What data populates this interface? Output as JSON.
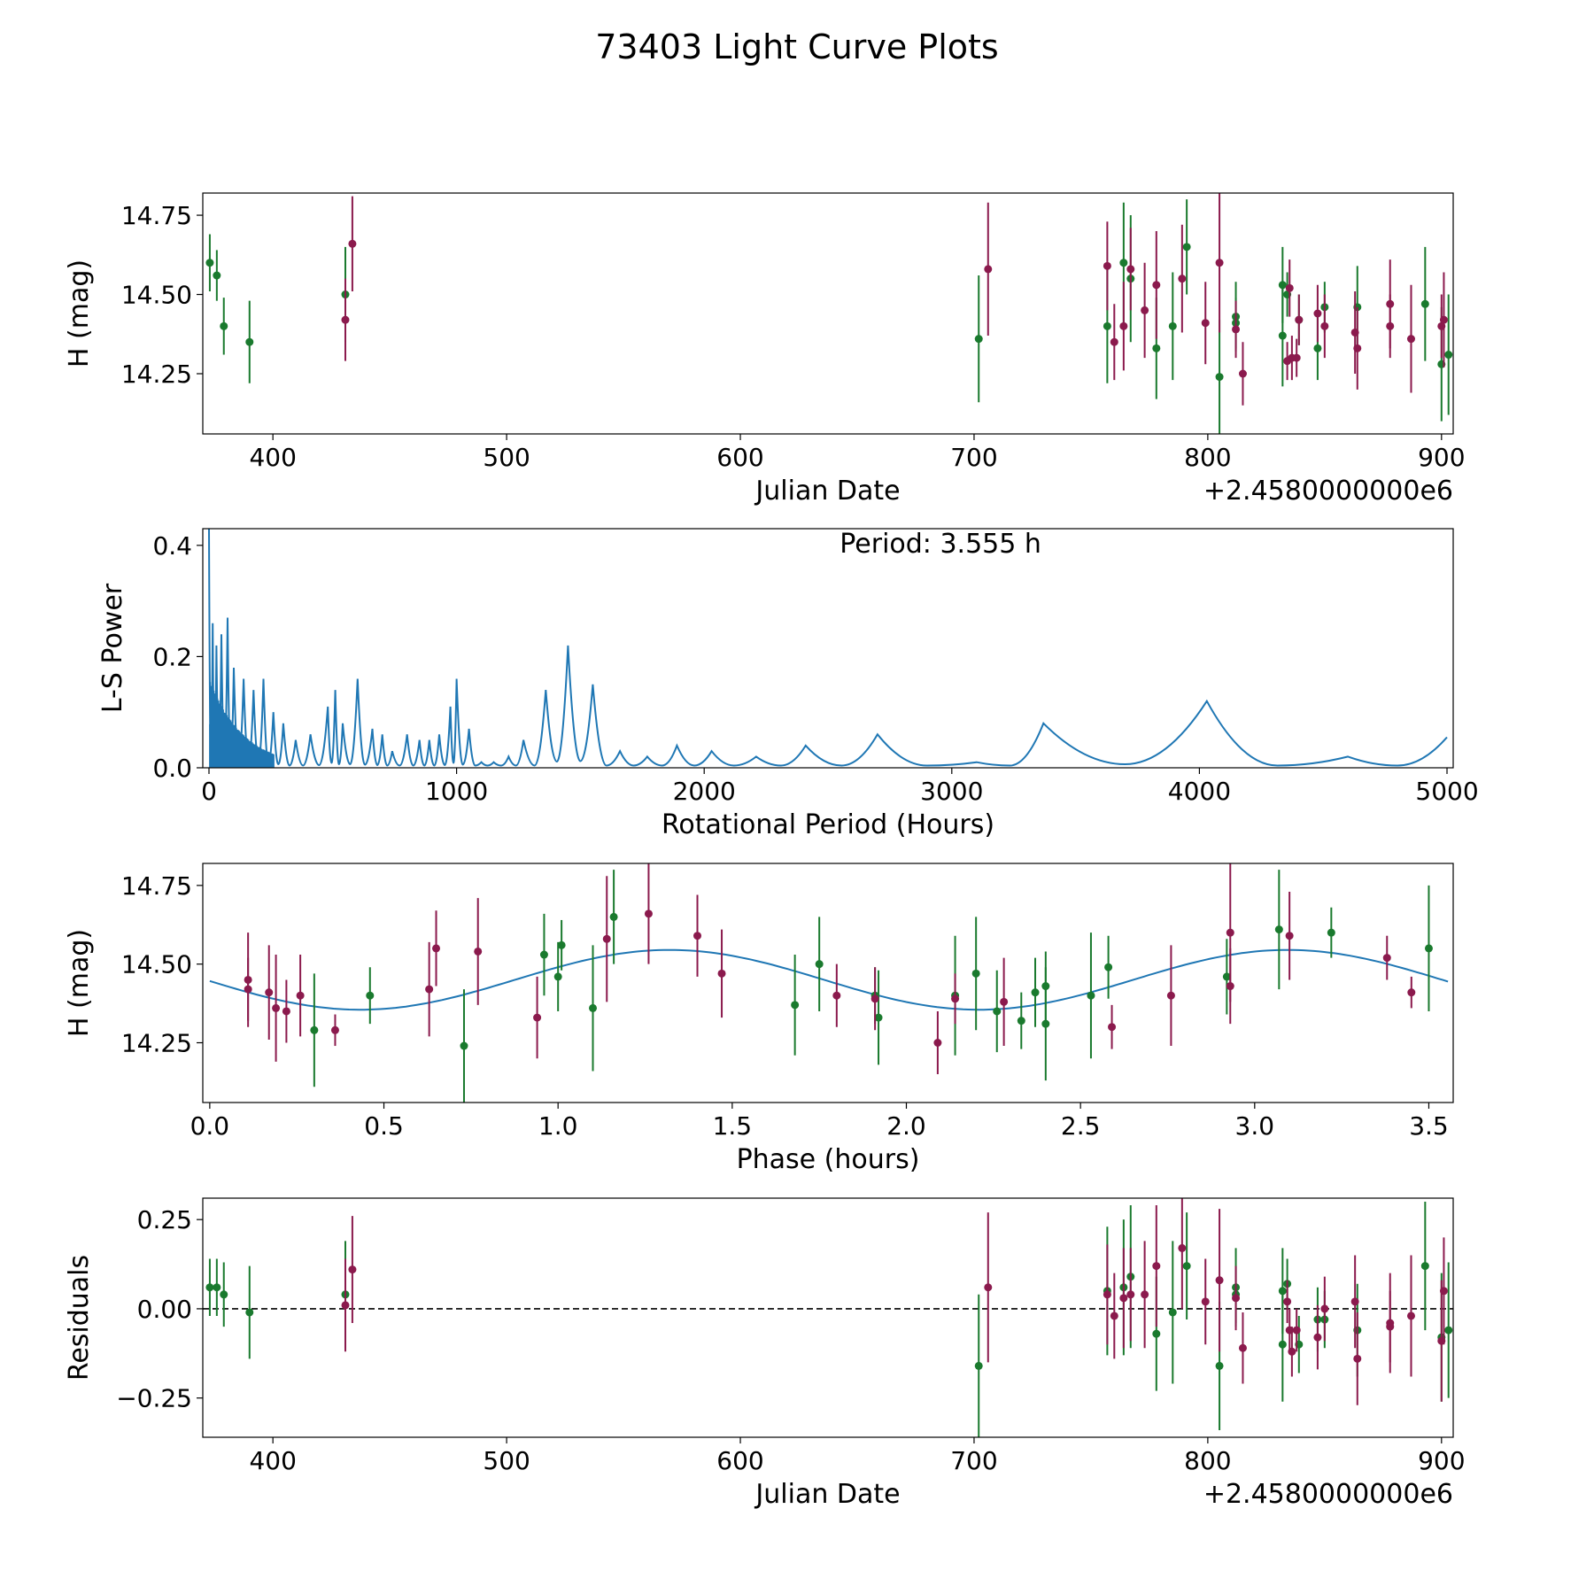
{
  "figure_title": "73403 Light Curve Plots",
  "colors": {
    "green": "#1a7a2e",
    "magenta": "#8b1a4d",
    "curve": "#1f77b4",
    "axis": "#000000"
  },
  "chart_data": [
    {
      "id": "lightcurve",
      "type": "scatter",
      "xlabel": "Julian Date",
      "ylabel": "H (mag)",
      "offset_text": "+2.4580000000e6",
      "xlim": [
        370,
        905
      ],
      "ylim": [
        14.06,
        14.82
      ],
      "xticks": [
        400,
        500,
        600,
        700,
        800,
        900
      ],
      "yticks": [
        14.25,
        14.5,
        14.75
      ],
      "ytick_labels": [
        "14.25",
        "14.50",
        "14.75"
      ],
      "series": [
        {
          "name": "green",
          "color": "#1a7a2e",
          "points": [
            [
              373,
              14.6,
              0.09
            ],
            [
              376,
              14.56,
              0.08
            ],
            [
              379,
              14.4,
              0.09
            ],
            [
              390,
              14.35,
              0.13
            ],
            [
              431,
              14.5,
              0.15
            ],
            [
              702,
              14.36,
              0.2
            ],
            [
              757,
              14.4,
              0.18
            ],
            [
              764,
              14.6,
              0.19
            ],
            [
              767,
              14.55,
              0.2
            ],
            [
              778,
              14.33,
              0.16
            ],
            [
              785,
              14.4,
              0.17
            ],
            [
              791,
              14.65,
              0.15
            ],
            [
              805,
              14.24,
              0.18
            ],
            [
              812,
              14.43,
              0.11
            ],
            [
              812,
              14.41,
              0.08
            ],
            [
              832,
              14.53,
              0.12
            ],
            [
              832,
              14.37,
              0.16
            ],
            [
              834,
              14.5,
              0.07
            ],
            [
              839,
              14.42,
              0.08
            ],
            [
              847,
              14.33,
              0.1
            ],
            [
              850,
              14.46,
              0.08
            ],
            [
              864,
              14.46,
              0.13
            ],
            [
              893,
              14.47,
              0.18
            ],
            [
              900,
              14.28,
              0.18
            ],
            [
              903,
              14.31,
              0.19
            ]
          ]
        },
        {
          "name": "magenta",
          "color": "#8b1a4d",
          "points": [
            [
              431,
              14.42,
              0.13
            ],
            [
              434,
              14.66,
              0.15
            ],
            [
              706,
              14.58,
              0.21
            ],
            [
              757,
              14.59,
              0.14
            ],
            [
              760,
              14.35,
              0.12
            ],
            [
              764,
              14.4,
              0.14
            ],
            [
              767,
              14.58,
              0.13
            ],
            [
              773,
              14.45,
              0.15
            ],
            [
              778,
              14.53,
              0.17
            ],
            [
              789,
              14.55,
              0.17
            ],
            [
              799,
              14.41,
              0.13
            ],
            [
              805,
              14.6,
              0.22
            ],
            [
              812,
              14.39,
              0.09
            ],
            [
              815,
              14.25,
              0.1
            ],
            [
              834,
              14.29,
              0.06
            ],
            [
              835,
              14.52,
              0.09
            ],
            [
              836,
              14.3,
              0.07
            ],
            [
              838,
              14.3,
              0.06
            ],
            [
              839,
              14.42,
              0.08
            ],
            [
              847,
              14.44,
              0.09
            ],
            [
              850,
              14.4,
              0.1
            ],
            [
              863,
              14.38,
              0.13
            ],
            [
              864,
              14.33,
              0.13
            ],
            [
              878,
              14.47,
              0.14
            ],
            [
              878,
              14.4,
              0.1
            ],
            [
              887,
              14.36,
              0.17
            ],
            [
              900,
              14.4,
              0.1
            ],
            [
              901,
              14.42,
              0.15
            ]
          ]
        }
      ]
    },
    {
      "id": "periodogram",
      "type": "line",
      "xlabel": "Rotational Period (Hours)",
      "ylabel": "L-S Power",
      "annotation": "Period: 3.555 h",
      "xlim": [
        -25,
        5025
      ],
      "ylim": [
        0,
        0.43
      ],
      "xticks": [
        0,
        1000,
        2000,
        3000,
        4000,
        5000
      ],
      "yticks": [
        0.0,
        0.2,
        0.4
      ],
      "ytick_labels": [
        "0.0",
        "0.2",
        "0.4"
      ],
      "peaks": [
        [
          0,
          0.43
        ],
        [
          15,
          0.26
        ],
        [
          30,
          0.22
        ],
        [
          50,
          0.24
        ],
        [
          75,
          0.27
        ],
        [
          100,
          0.18
        ],
        [
          140,
          0.16
        ],
        [
          180,
          0.14
        ],
        [
          220,
          0.16
        ],
        [
          260,
          0.1
        ],
        [
          300,
          0.08
        ],
        [
          350,
          0.05
        ],
        [
          410,
          0.06
        ],
        [
          480,
          0.11
        ],
        [
          510,
          0.14
        ],
        [
          540,
          0.08
        ],
        [
          600,
          0.16
        ],
        [
          660,
          0.07
        ],
        [
          700,
          0.06
        ],
        [
          740,
          0.03
        ],
        [
          800,
          0.06
        ],
        [
          850,
          0.05
        ],
        [
          890,
          0.05
        ],
        [
          930,
          0.06
        ],
        [
          975,
          0.11
        ],
        [
          1000,
          0.16
        ],
        [
          1050,
          0.07
        ],
        [
          1100,
          0.01
        ],
        [
          1150,
          0.01
        ],
        [
          1210,
          0.02
        ],
        [
          1270,
          0.05
        ],
        [
          1360,
          0.14
        ],
        [
          1450,
          0.22
        ],
        [
          1550,
          0.15
        ],
        [
          1660,
          0.03
        ],
        [
          1770,
          0.02
        ],
        [
          1890,
          0.04
        ],
        [
          2030,
          0.03
        ],
        [
          2210,
          0.02
        ],
        [
          2410,
          0.04
        ],
        [
          2700,
          0.06
        ],
        [
          3100,
          0.01
        ],
        [
          3370,
          0.08
        ],
        [
          4030,
          0.12
        ],
        [
          4600,
          0.02
        ],
        [
          5000,
          0.055
        ]
      ]
    },
    {
      "id": "phased",
      "type": "scatter",
      "xlabel": "Phase (hours)",
      "ylabel": "H (mag)",
      "xlim": [
        -0.02,
        3.57
      ],
      "ylim": [
        14.06,
        14.82
      ],
      "xticks": [
        0.0,
        0.5,
        1.0,
        1.5,
        2.0,
        2.5,
        3.0,
        3.5
      ],
      "xtick_labels": [
        "0.0",
        "0.5",
        "1.0",
        "1.5",
        "2.0",
        "2.5",
        "3.0",
        "3.5"
      ],
      "yticks": [
        14.25,
        14.5,
        14.75
      ],
      "ytick_labels": [
        "14.25",
        "14.50",
        "14.75"
      ],
      "fit": {
        "mean": 14.45,
        "amplitude": 0.095,
        "period": 1.775,
        "peak_phase": 1.32
      },
      "series": [
        {
          "name": "green",
          "color": "#1a7a2e",
          "points": [
            [
              0.3,
              14.29,
              0.18
            ],
            [
              0.46,
              14.4,
              0.09
            ],
            [
              0.73,
              14.24,
              0.18
            ],
            [
              0.96,
              14.53,
              0.13
            ],
            [
              1.0,
              14.46,
              0.11
            ],
            [
              1.01,
              14.56,
              0.08
            ],
            [
              1.1,
              14.36,
              0.2
            ],
            [
              1.16,
              14.65,
              0.15
            ],
            [
              1.68,
              14.37,
              0.16
            ],
            [
              1.75,
              14.5,
              0.15
            ],
            [
              1.91,
              14.4,
              0.09
            ],
            [
              1.92,
              14.33,
              0.15
            ],
            [
              2.14,
              14.4,
              0.19
            ],
            [
              2.2,
              14.47,
              0.18
            ],
            [
              2.26,
              14.35,
              0.13
            ],
            [
              2.33,
              14.32,
              0.09
            ],
            [
              2.37,
              14.41,
              0.11
            ],
            [
              2.4,
              14.43,
              0.11
            ],
            [
              2.4,
              14.31,
              0.18
            ],
            [
              2.53,
              14.4,
              0.2
            ],
            [
              2.58,
              14.49,
              0.1
            ],
            [
              2.92,
              14.46,
              0.12
            ],
            [
              3.07,
              14.61,
              0.19
            ],
            [
              3.22,
              14.6,
              0.08
            ],
            [
              3.5,
              14.55,
              0.2
            ]
          ]
        },
        {
          "name": "magenta",
          "color": "#8b1a4d",
          "points": [
            [
              0.11,
              14.45,
              0.15
            ],
            [
              0.11,
              14.42,
              0.1
            ],
            [
              0.17,
              14.41,
              0.15
            ],
            [
              0.19,
              14.36,
              0.17
            ],
            [
              0.22,
              14.35,
              0.1
            ],
            [
              0.26,
              14.4,
              0.13
            ],
            [
              0.36,
              14.29,
              0.05
            ],
            [
              0.63,
              14.42,
              0.15
            ],
            [
              0.65,
              14.55,
              0.12
            ],
            [
              0.77,
              14.54,
              0.17
            ],
            [
              0.94,
              14.33,
              0.13
            ],
            [
              1.14,
              14.58,
              0.2
            ],
            [
              1.26,
              14.66,
              0.16
            ],
            [
              1.4,
              14.59,
              0.13
            ],
            [
              1.47,
              14.47,
              0.14
            ],
            [
              1.8,
              14.4,
              0.1
            ],
            [
              1.91,
              14.39,
              0.1
            ],
            [
              2.09,
              14.25,
              0.1
            ],
            [
              2.14,
              14.39,
              0.08
            ],
            [
              2.28,
              14.38,
              0.14
            ],
            [
              2.59,
              14.3,
              0.07
            ],
            [
              2.76,
              14.4,
              0.16
            ],
            [
              2.93,
              14.43,
              0.12
            ],
            [
              2.93,
              14.6,
              0.22
            ],
            [
              3.1,
              14.59,
              0.14
            ],
            [
              3.38,
              14.52,
              0.07
            ],
            [
              3.45,
              14.41,
              0.05
            ]
          ]
        }
      ]
    },
    {
      "id": "residuals",
      "type": "scatter",
      "xlabel": "Julian Date",
      "ylabel": "Residuals",
      "offset_text": "+2.4580000000e6",
      "xlim": [
        370,
        905
      ],
      "ylim": [
        -0.36,
        0.31
      ],
      "xticks": [
        400,
        500,
        600,
        700,
        800,
        900
      ],
      "yticks": [
        -0.25,
        0.0,
        0.25
      ],
      "ytick_labels": [
        "−0.25",
        "0.00",
        "0.25"
      ],
      "reference_line": 0.0,
      "series": [
        {
          "name": "green",
          "color": "#1a7a2e",
          "points": [
            [
              373,
              0.06,
              0.08
            ],
            [
              376,
              0.06,
              0.08
            ],
            [
              379,
              0.04,
              0.09
            ],
            [
              390,
              -0.01,
              0.13
            ],
            [
              431,
              0.04,
              0.15
            ],
            [
              702,
              -0.16,
              0.2
            ],
            [
              757,
              0.05,
              0.18
            ],
            [
              764,
              0.06,
              0.19
            ],
            [
              767,
              0.09,
              0.2
            ],
            [
              778,
              -0.07,
              0.16
            ],
            [
              785,
              -0.01,
              0.2
            ],
            [
              791,
              0.12,
              0.15
            ],
            [
              805,
              -0.16,
              0.18
            ],
            [
              812,
              0.06,
              0.11
            ],
            [
              812,
              0.04,
              0.08
            ],
            [
              832,
              0.05,
              0.12
            ],
            [
              832,
              -0.1,
              0.16
            ],
            [
              834,
              0.07,
              0.07
            ],
            [
              839,
              -0.1,
              0.08
            ],
            [
              847,
              -0.03,
              0.09
            ],
            [
              850,
              -0.03,
              0.08
            ],
            [
              864,
              -0.06,
              0.13
            ],
            [
              893,
              0.12,
              0.18
            ],
            [
              900,
              -0.08,
              0.18
            ],
            [
              903,
              -0.06,
              0.19
            ]
          ]
        },
        {
          "name": "magenta",
          "color": "#8b1a4d",
          "points": [
            [
              431,
              0.01,
              0.13
            ],
            [
              434,
              0.11,
              0.15
            ],
            [
              706,
              0.06,
              0.21
            ],
            [
              757,
              0.04,
              0.14
            ],
            [
              760,
              -0.02,
              0.12
            ],
            [
              764,
              0.03,
              0.14
            ],
            [
              767,
              0.04,
              0.13
            ],
            [
              773,
              0.04,
              0.15
            ],
            [
              778,
              0.12,
              0.17
            ],
            [
              789,
              0.17,
              0.17
            ],
            [
              799,
              0.02,
              0.12
            ],
            [
              805,
              0.08,
              0.2
            ],
            [
              812,
              0.03,
              0.09
            ],
            [
              815,
              -0.11,
              0.1
            ],
            [
              834,
              0.02,
              0.06
            ],
            [
              835,
              -0.06,
              0.06
            ],
            [
              836,
              -0.12,
              0.07
            ],
            [
              838,
              -0.06,
              0.06
            ],
            [
              847,
              -0.08,
              0.09
            ],
            [
              850,
              0.0,
              0.09
            ],
            [
              863,
              0.02,
              0.13
            ],
            [
              864,
              -0.14,
              0.13
            ],
            [
              878,
              -0.04,
              0.14
            ],
            [
              878,
              -0.05,
              0.1
            ],
            [
              887,
              -0.02,
              0.17
            ],
            [
              900,
              -0.09,
              0.17
            ],
            [
              901,
              0.05,
              0.15
            ]
          ]
        }
      ]
    }
  ]
}
